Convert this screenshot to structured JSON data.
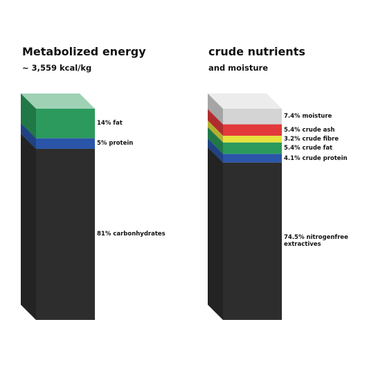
{
  "chart_data": [
    {
      "type": "stacked-column",
      "title": "Metabolized energy",
      "subtitle": "~ 3,559 kcal/kg",
      "series": [
        {
          "values": [
            14
          ],
          "value_labels": [
            "14% fat"
          ],
          "color": "#2b9a5c"
        },
        {
          "values": [
            5
          ],
          "value_labels": [
            "5% protein"
          ],
          "color": "#2a55a8"
        },
        {
          "values": [
            81
          ],
          "value_labels": [
            "81% carbonhydrates"
          ],
          "color": "#2d2d2d"
        }
      ]
    },
    {
      "type": "stacked-column",
      "title": "crude nutrients",
      "subtitle": "and moisture",
      "series": [
        {
          "values": [
            7.4
          ],
          "value_labels": [
            "7.4% moisture"
          ],
          "color": "#d4d4d4"
        },
        {
          "values": [
            5.4
          ],
          "value_labels": [
            "5.4% crude ash"
          ],
          "color": "#e23a3c"
        },
        {
          "values": [
            3.2
          ],
          "value_labels": [
            "3.2% crude fibre"
          ],
          "color": "#e6e23e"
        },
        {
          "values": [
            5.4
          ],
          "value_labels": [
            "5.4% crude fat"
          ],
          "color": "#2b9a5c"
        },
        {
          "values": [
            4.1
          ],
          "value_labels": [
            "4.1% crude protein"
          ],
          "color": "#2a55a8"
        },
        {
          "values": [
            74.5
          ],
          "value_labels": [
            "74.5% nitrogenfree extractives"
          ],
          "color": "#2d2d2d"
        }
      ]
    }
  ]
}
